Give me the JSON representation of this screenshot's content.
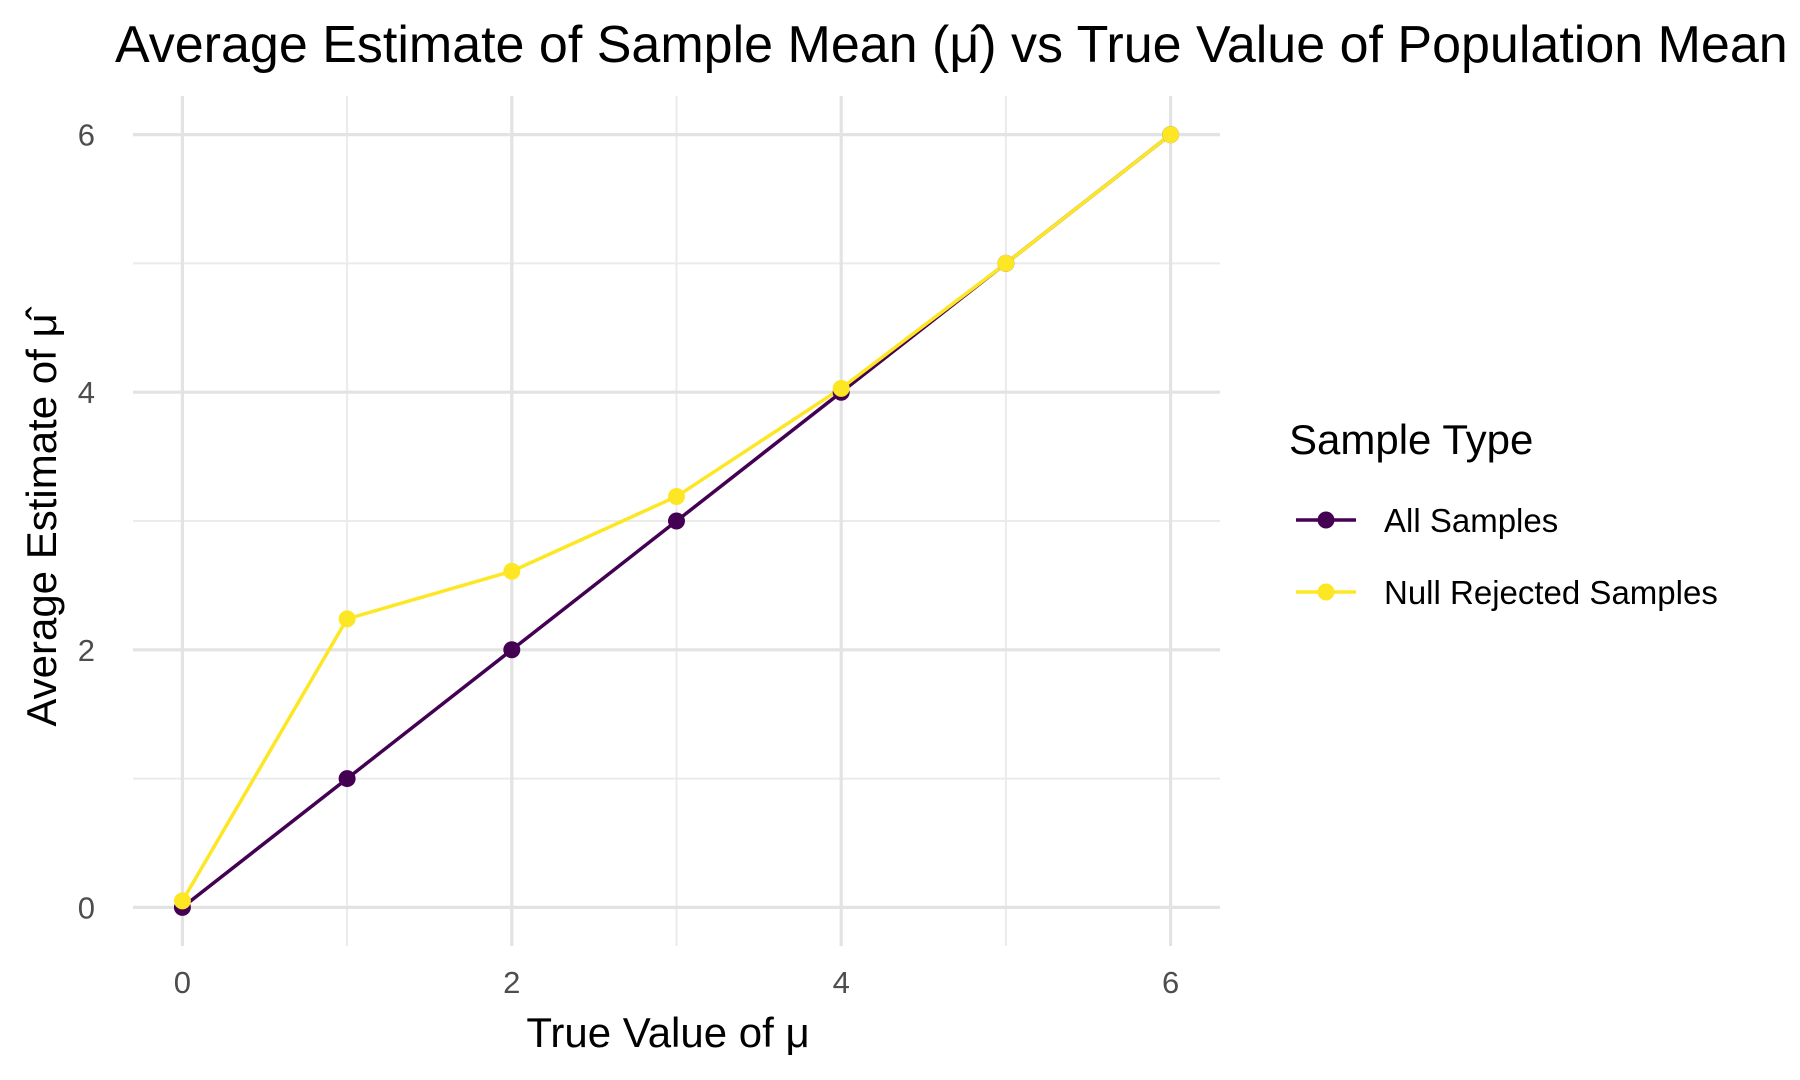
{
  "chart_data": {
    "type": "line",
    "title": "Average Estimate of Sample Mean (μ̂) vs True Value of Population Mean",
    "xlabel": "True Value of μ",
    "ylabel": "Average Estimate of μ̂",
    "x": [
      0,
      1,
      2,
      3,
      4,
      5,
      6
    ],
    "xlim": [
      -0.3,
      6.3
    ],
    "ylim": [
      -0.3,
      6.3
    ],
    "x_ticks": [
      0,
      2,
      4,
      6
    ],
    "y_ticks": [
      0,
      2,
      4,
      6
    ],
    "x_tick_labels": [
      "0",
      "2",
      "4",
      "6"
    ],
    "y_tick_labels": [
      "0",
      "2",
      "4",
      "6"
    ],
    "grid": true,
    "legend": {
      "title": "Sample Type",
      "position": "right"
    },
    "series": [
      {
        "name": "All Samples",
        "color": "#440154",
        "values": [
          0.0,
          1.0,
          2.0,
          3.0,
          4.0,
          5.0,
          6.0
        ]
      },
      {
        "name": "Null Rejected Samples",
        "color": "#FDE725",
        "values": [
          0.05,
          2.24,
          2.61,
          3.19,
          4.03,
          5.0,
          6.0
        ]
      }
    ]
  }
}
